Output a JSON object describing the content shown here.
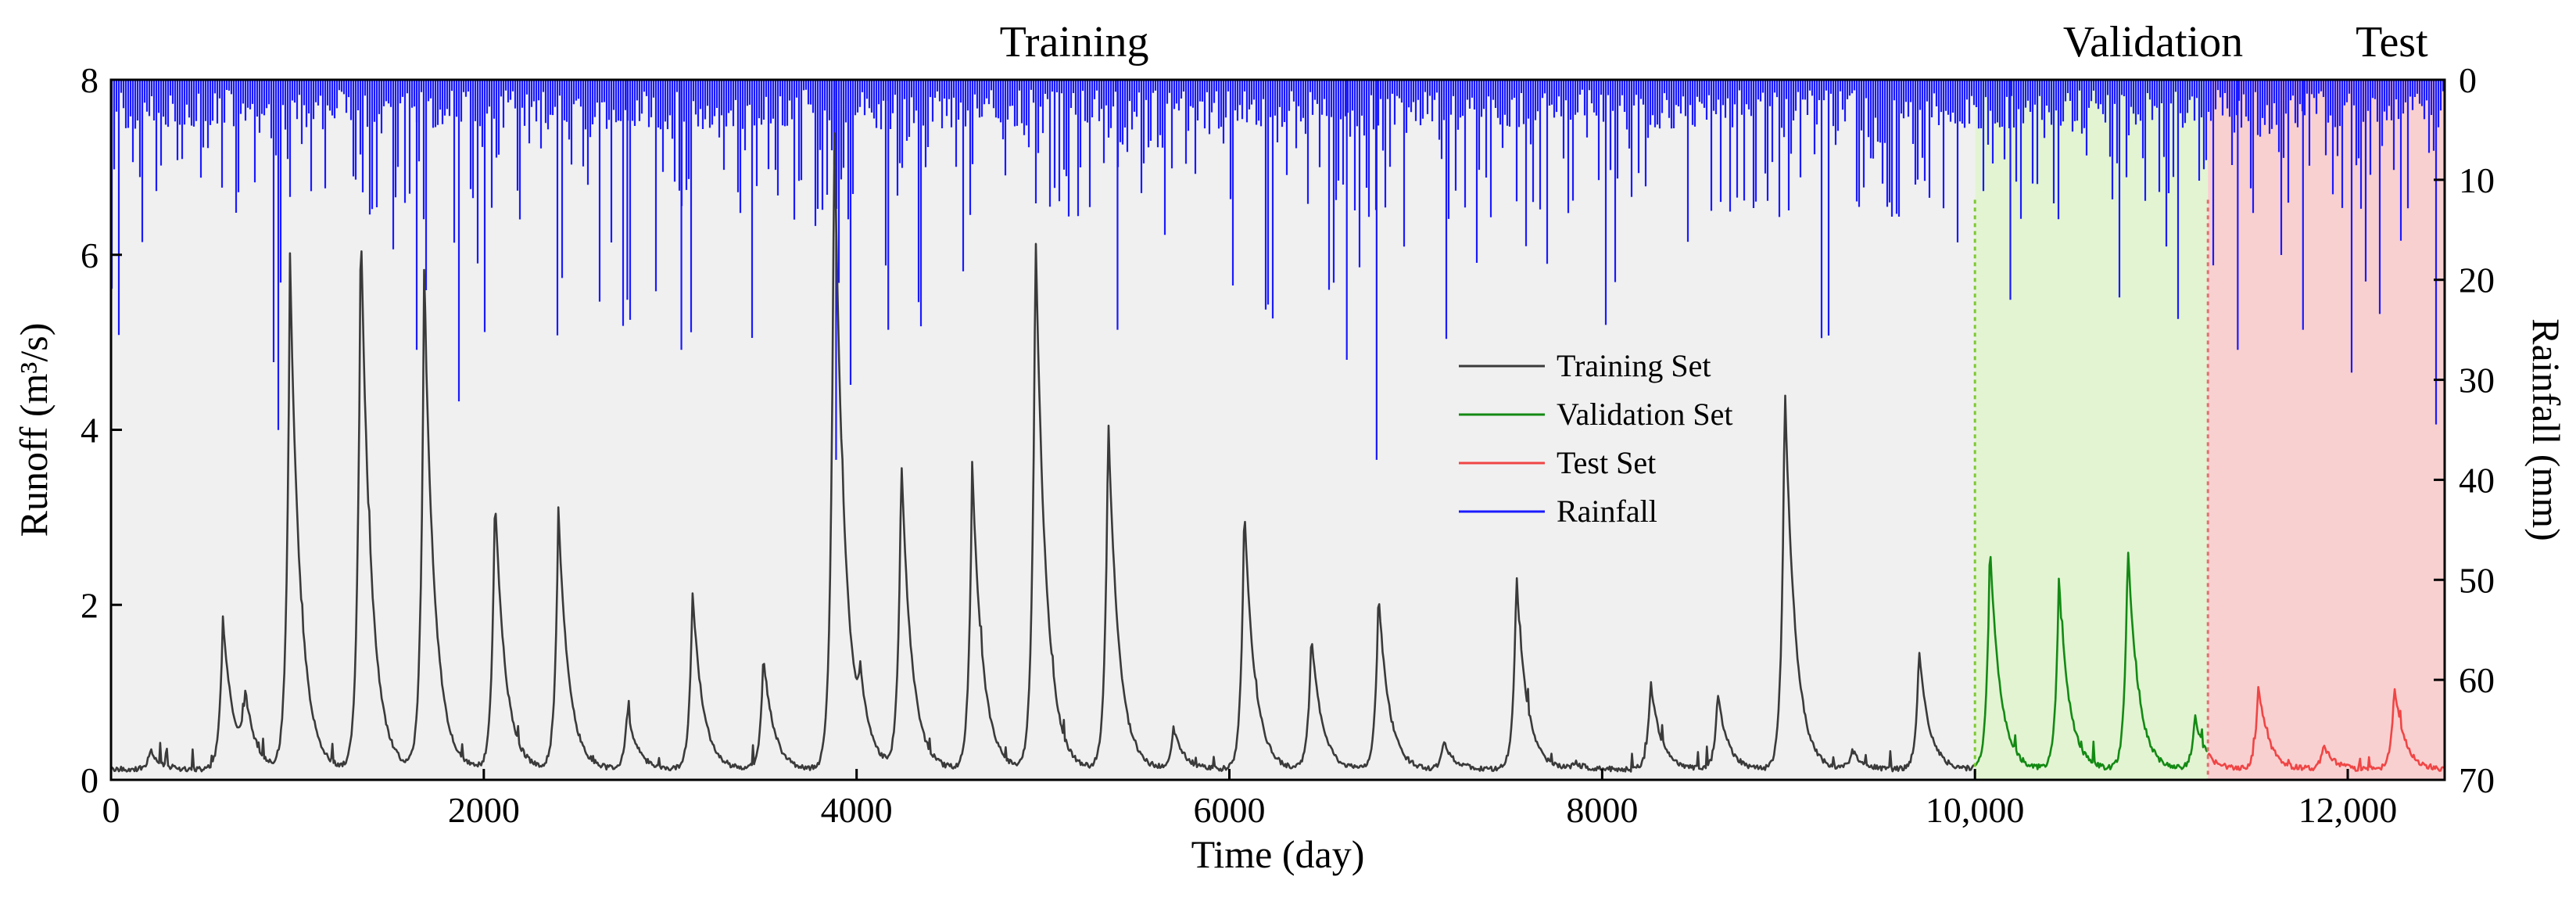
{
  "chart_data": {
    "type": "line",
    "title": "",
    "xlabel": "Time (day)",
    "ylabel": "Runoff (m³/s)",
    "y2label": "Rainfall (mm)",
    "xlim": [
      0,
      12520
    ],
    "ylim": [
      0,
      8
    ],
    "y2lim": [
      0,
      70
    ],
    "y2_inverted": true,
    "x_ticks": [
      0,
      2000,
      4000,
      6000,
      8000,
      10000,
      12000
    ],
    "x_tick_labels": [
      "0",
      "2000",
      "4000",
      "6000",
      "8000",
      "10,000",
      "12,000"
    ],
    "y_ticks": [
      0,
      2,
      4,
      6,
      8
    ],
    "y_tick_labels": [
      "0",
      "2",
      "4",
      "6",
      "8"
    ],
    "y2_ticks": [
      0,
      10,
      20,
      30,
      40,
      50,
      60,
      70
    ],
    "y2_tick_labels": [
      "0",
      "10",
      "20",
      "30",
      "40",
      "50",
      "60",
      "70"
    ],
    "grid": false,
    "legend_position": "center",
    "regions": [
      {
        "name": "Training",
        "label": "Training",
        "x_start": 0,
        "x_end": 10000,
        "color": "#f0f0f0"
      },
      {
        "name": "Validation",
        "label": "Validation",
        "x_start": 10000,
        "x_end": 11250,
        "color": "#e3f4d3"
      },
      {
        "name": "Test",
        "label": "Test",
        "x_start": 11250,
        "x_end": 12520,
        "color": "#f9d0d0"
      }
    ],
    "runoff_baseline": 0.12,
    "runoff_peaks": [
      {
        "x": 210,
        "y": 0.35,
        "set": "train"
      },
      {
        "x": 600,
        "y": 1.9,
        "set": "train"
      },
      {
        "x": 720,
        "y": 0.85,
        "set": "train"
      },
      {
        "x": 960,
        "y": 6.1,
        "set": "train"
      },
      {
        "x": 1340,
        "y": 6.6,
        "set": "train"
      },
      {
        "x": 1680,
        "y": 5.9,
        "set": "train"
      },
      {
        "x": 2060,
        "y": 3.35,
        "set": "train"
      },
      {
        "x": 2400,
        "y": 3.15,
        "set": "train"
      },
      {
        "x": 2770,
        "y": 0.8,
        "set": "train"
      },
      {
        "x": 3120,
        "y": 2.2,
        "set": "train"
      },
      {
        "x": 3500,
        "y": 1.45,
        "set": "train"
      },
      {
        "x": 3880,
        "y": 7.8,
        "set": "train"
      },
      {
        "x": 4020,
        "y": 0.75,
        "set": "train"
      },
      {
        "x": 4240,
        "y": 3.75,
        "set": "train"
      },
      {
        "x": 4620,
        "y": 3.7,
        "set": "train"
      },
      {
        "x": 4960,
        "y": 6.45,
        "set": "train"
      },
      {
        "x": 5350,
        "y": 4.25,
        "set": "train"
      },
      {
        "x": 5700,
        "y": 0.6,
        "set": "train"
      },
      {
        "x": 6080,
        "y": 3.2,
        "set": "train"
      },
      {
        "x": 6440,
        "y": 1.7,
        "set": "train"
      },
      {
        "x": 6800,
        "y": 2.2,
        "set": "train"
      },
      {
        "x": 7150,
        "y": 0.45,
        "set": "train"
      },
      {
        "x": 7540,
        "y": 2.4,
        "set": "train"
      },
      {
        "x": 7850,
        "y": 0.2,
        "set": "train"
      },
      {
        "x": 8260,
        "y": 1.15,
        "set": "train"
      },
      {
        "x": 8620,
        "y": 1.0,
        "set": "train"
      },
      {
        "x": 8980,
        "y": 4.65,
        "set": "train"
      },
      {
        "x": 9340,
        "y": 0.35,
        "set": "train"
      },
      {
        "x": 9700,
        "y": 1.5,
        "set": "train"
      },
      {
        "x": 10080,
        "y": 2.75,
        "set": "val"
      },
      {
        "x": 10450,
        "y": 2.35,
        "set": "val"
      },
      {
        "x": 10820,
        "y": 2.75,
        "set": "val"
      },
      {
        "x": 11180,
        "y": 0.75,
        "set": "val"
      },
      {
        "x": 11520,
        "y": 1.1,
        "set": "test"
      },
      {
        "x": 11870,
        "y": 0.4,
        "set": "test"
      },
      {
        "x": 12250,
        "y": 1.1,
        "set": "test"
      }
    ],
    "rainfall_max_mm": 40,
    "series": [
      {
        "name": "Training Set",
        "color": "#3a3a3a"
      },
      {
        "name": "Validation Set",
        "color": "#138a13"
      },
      {
        "name": "Test Set",
        "color": "#f04545"
      },
      {
        "name": "Rainfall",
        "color": "#1a1aff"
      }
    ]
  }
}
